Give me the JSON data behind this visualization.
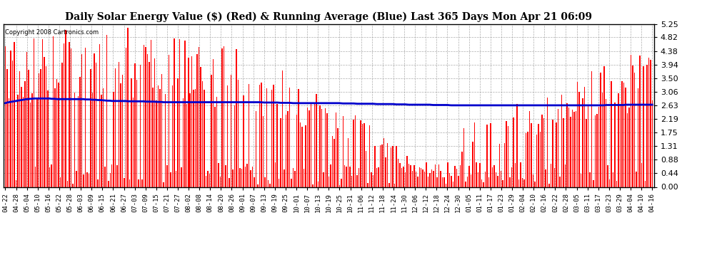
{
  "title": "Daily Solar Energy Value ($) (Red) & Running Average (Blue) Last 365 Days Mon Apr 21 06:09",
  "copyright": "Copyright 2008 Cartronics.com",
  "yticks": [
    0.0,
    0.44,
    0.88,
    1.31,
    1.75,
    2.19,
    2.63,
    3.06,
    3.5,
    3.94,
    4.38,
    4.82,
    5.25
  ],
  "ylim": [
    0,
    5.25
  ],
  "bar_color": "#ff0000",
  "line_color": "#0000cc",
  "background_color": "#ffffff",
  "grid_color": "#999999",
  "title_fontsize": 10,
  "x_labels": [
    "04-22",
    "04-28",
    "05-04",
    "05-10",
    "05-16",
    "05-22",
    "05-28",
    "06-03",
    "06-09",
    "06-15",
    "06-21",
    "06-27",
    "07-03",
    "07-09",
    "07-15",
    "07-21",
    "07-27",
    "08-02",
    "08-08",
    "08-14",
    "08-20",
    "08-26",
    "09-01",
    "09-07",
    "09-13",
    "09-19",
    "09-25",
    "10-01",
    "10-07",
    "10-13",
    "10-19",
    "10-25",
    "10-31",
    "11-06",
    "11-12",
    "11-18",
    "11-24",
    "11-30",
    "12-06",
    "12-12",
    "12-18",
    "12-24",
    "12-30",
    "01-05",
    "01-11",
    "01-17",
    "01-23",
    "01-29",
    "02-04",
    "02-10",
    "02-16",
    "02-22",
    "02-28",
    "03-05",
    "03-11",
    "03-17",
    "03-23",
    "03-29",
    "04-04",
    "04-10",
    "04-16"
  ],
  "n_days": 365,
  "seed": 42,
  "bar_width": 0.6,
  "running_avg_values": [
    2.7,
    2.72,
    2.73,
    2.74,
    2.75,
    2.76,
    2.77,
    2.78,
    2.79,
    2.8,
    2.81,
    2.82,
    2.83,
    2.83,
    2.84,
    2.84,
    2.85,
    2.85,
    2.85,
    2.85,
    2.85,
    2.85,
    2.85,
    2.85,
    2.85,
    2.85,
    2.84,
    2.84,
    2.84,
    2.83,
    2.83,
    2.83,
    2.83,
    2.83,
    2.83,
    2.83,
    2.83,
    2.83,
    2.83,
    2.83,
    2.83,
    2.83,
    2.83,
    2.83,
    2.83,
    2.82,
    2.82,
    2.82,
    2.82,
    2.81,
    2.81,
    2.81,
    2.8,
    2.8,
    2.8,
    2.79,
    2.79,
    2.78,
    2.78,
    2.78,
    2.77,
    2.77,
    2.77,
    2.77,
    2.77,
    2.77,
    2.77,
    2.77,
    2.77,
    2.76,
    2.76,
    2.76,
    2.76,
    2.76,
    2.76,
    2.76,
    2.76,
    2.76,
    2.76,
    2.75,
    2.75,
    2.75,
    2.75,
    2.75,
    2.75,
    2.74,
    2.74,
    2.74,
    2.74,
    2.73,
    2.73,
    2.73,
    2.73,
    2.73,
    2.73,
    2.73,
    2.73,
    2.73,
    2.73,
    2.73,
    2.73,
    2.73,
    2.73,
    2.73,
    2.73,
    2.73,
    2.73,
    2.73,
    2.73,
    2.73,
    2.73,
    2.73,
    2.73,
    2.73,
    2.73,
    2.73,
    2.73,
    2.73,
    2.73,
    2.73,
    2.73,
    2.73,
    2.73,
    2.73,
    2.73,
    2.73,
    2.73,
    2.73,
    2.73,
    2.73,
    2.73,
    2.73,
    2.73,
    2.73,
    2.73,
    2.73,
    2.73,
    2.73,
    2.73,
    2.73,
    2.73,
    2.73,
    2.73,
    2.73,
    2.73,
    2.72,
    2.72,
    2.72,
    2.72,
    2.72,
    2.72,
    2.72,
    2.72,
    2.72,
    2.72,
    2.71,
    2.71,
    2.71,
    2.71,
    2.71,
    2.71,
    2.71,
    2.7,
    2.7,
    2.7,
    2.7,
    2.7,
    2.7,
    2.7,
    2.7,
    2.7,
    2.7,
    2.7,
    2.7,
    2.7,
    2.7,
    2.7,
    2.7,
    2.7,
    2.7,
    2.7,
    2.7,
    2.7,
    2.7,
    2.7,
    2.7,
    2.7,
    2.7,
    2.7,
    2.7,
    2.69,
    2.69,
    2.69,
    2.69,
    2.69,
    2.69,
    2.69,
    2.69,
    2.68,
    2.68,
    2.68,
    2.68,
    2.68,
    2.68,
    2.68,
    2.68,
    2.68,
    2.68,
    2.68,
    2.67,
    2.67,
    2.67,
    2.67,
    2.67,
    2.67,
    2.67,
    2.67,
    2.67,
    2.67,
    2.67,
    2.66,
    2.66,
    2.66,
    2.66,
    2.66,
    2.66,
    2.66,
    2.65,
    2.65,
    2.65,
    2.65,
    2.65,
    2.65,
    2.65,
    2.65,
    2.65,
    2.65,
    2.65,
    2.65,
    2.65,
    2.65,
    2.64,
    2.64,
    2.64,
    2.64,
    2.64,
    2.64,
    2.64,
    2.64,
    2.64,
    2.64,
    2.63,
    2.63,
    2.63,
    2.63,
    2.63,
    2.63,
    2.63,
    2.63,
    2.63,
    2.63,
    2.63,
    2.63,
    2.63,
    2.63,
    2.63,
    2.63,
    2.63,
    2.63,
    2.63,
    2.63,
    2.63,
    2.63,
    2.63,
    2.63,
    2.63,
    2.63,
    2.63,
    2.63,
    2.63,
    2.63,
    2.63,
    2.63,
    2.63,
    2.63,
    2.63,
    2.63,
    2.63,
    2.63,
    2.63,
    2.63,
    2.63,
    2.63,
    2.63,
    2.63,
    2.63,
    2.63,
    2.63,
    2.63,
    2.63,
    2.63,
    2.63,
    2.63,
    2.63,
    2.63,
    2.63,
    2.63,
    2.63,
    2.63,
    2.63,
    2.63,
    2.63,
    2.63,
    2.63,
    2.63,
    2.63,
    2.63,
    2.63,
    2.63,
    2.63,
    2.63,
    2.63,
    2.63,
    2.63,
    2.63,
    2.63,
    2.63,
    2.63,
    2.63,
    2.63,
    2.63,
    2.63,
    2.63,
    2.63,
    2.63,
    2.63,
    2.63,
    2.63,
    2.63,
    2.64,
    2.64,
    2.64,
    2.64,
    2.64,
    2.64,
    2.64,
    2.64,
    2.64,
    2.64,
    2.64,
    2.65,
    2.65,
    2.65,
    2.65,
    2.65,
    2.65,
    2.65,
    2.65,
    2.65,
    2.65,
    2.65,
    2.65,
    2.65,
    2.65,
    2.65,
    2.65
  ]
}
